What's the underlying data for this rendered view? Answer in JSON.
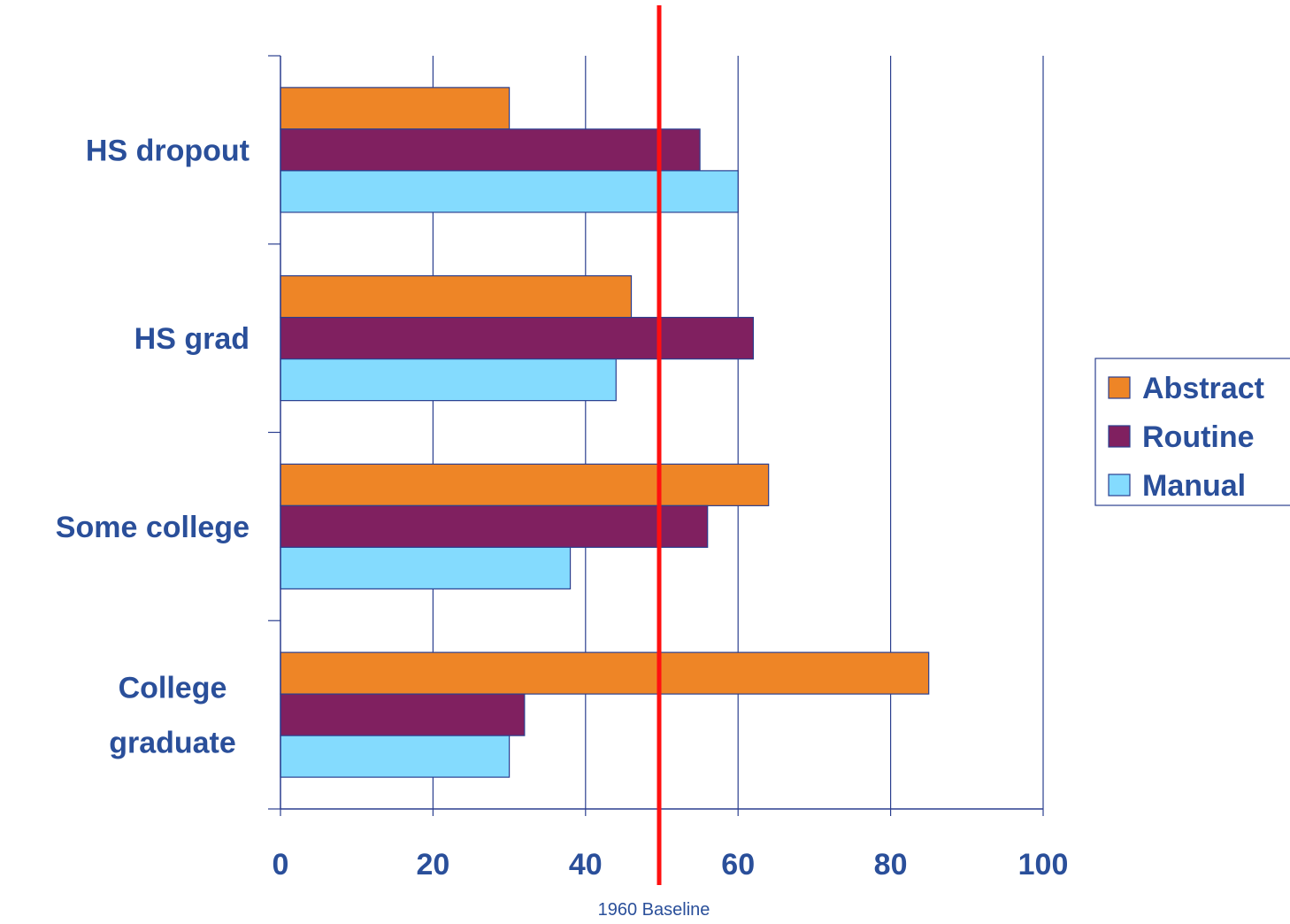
{
  "chart_data": {
    "type": "bar",
    "orientation": "horizontal",
    "categories": [
      [
        "HS dropout"
      ],
      [
        "HS grad"
      ],
      [
        "Some college"
      ],
      [
        "College",
        "graduate"
      ]
    ],
    "series": [
      {
        "name": "Abstract",
        "color": "#ee8526",
        "values": [
          30,
          46,
          64,
          85
        ]
      },
      {
        "name": "Routine",
        "color": "#802060",
        "values": [
          55,
          62,
          56,
          32
        ]
      },
      {
        "name": "Manual",
        "color": "#84dbfe",
        "values": [
          60,
          44,
          38,
          30
        ]
      }
    ],
    "xlim": [
      0,
      100
    ],
    "xticks": [
      0,
      20,
      40,
      60,
      80,
      100
    ],
    "grid": true,
    "legend": "right",
    "reference_line": {
      "value": 50,
      "label": "1960 Baseline",
      "color": "#ff1010"
    },
    "text_color": "#2a4f9a",
    "axis_color": "#2b3f8f"
  }
}
